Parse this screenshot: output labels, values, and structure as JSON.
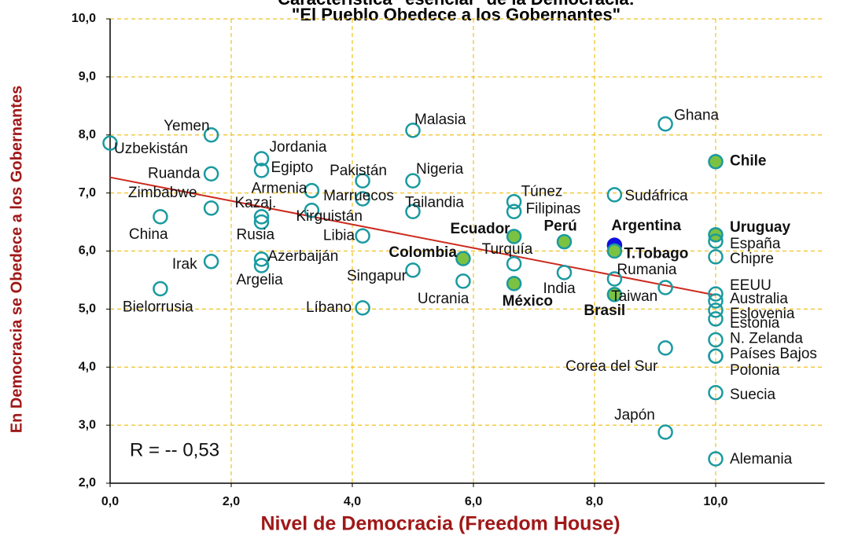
{
  "chart_data": {
    "type": "scatter",
    "title": [
      "Característica \"esencial\" de la Democracia:",
      "\"El Pueblo Obedece a los Gobernantes\""
    ],
    "xlabel": "Nivel de Democracia (Freedom House)",
    "ylabel": "En Democracia se Obedece a los Gobernantes",
    "annotation": "R = -- 0,53",
    "xlim": [
      0,
      11.8
    ],
    "ylim": [
      2,
      10
    ],
    "xticks": [
      {
        "value": 0,
        "label": "0,0"
      },
      {
        "value": 2,
        "label": "2,0"
      },
      {
        "value": 4,
        "label": "4,0"
      },
      {
        "value": 6,
        "label": "6,0"
      },
      {
        "value": 8,
        "label": "8,0"
      },
      {
        "value": 10,
        "label": "10,0"
      }
    ],
    "yticks": [
      {
        "value": 2,
        "label": "2,0"
      },
      {
        "value": 3,
        "label": "3,0"
      },
      {
        "value": 4,
        "label": "4,0"
      },
      {
        "value": 5,
        "label": "5,0"
      },
      {
        "value": 6,
        "label": "6,0"
      },
      {
        "value": 7,
        "label": "7,0"
      },
      {
        "value": 8,
        "label": "8,0"
      },
      {
        "value": 9,
        "label": "9,0"
      },
      {
        "value": 10,
        "label": "10,0"
      }
    ],
    "grid": true,
    "grid_color": "#f0c020",
    "marker_color": "#1a9aa0",
    "highlight_fill": "#7cc242",
    "labels": [
      "Uzbekistán",
      "Yemen",
      "Ruanda",
      "Zimbabwe",
      "China",
      "Irak",
      "Bielorrusia",
      "Jordania",
      "Egipto",
      "Kazaj.",
      "Rusia",
      "Azerbaiján",
      "Argelia",
      "Armenia",
      "Kirguistán",
      "Pakistán",
      "Marruecos",
      "Libia",
      "Líbano",
      "Malasia",
      "Nigeria",
      "Tailandia",
      "Singapur",
      "Ucrania",
      "Colombia",
      "Ecuador",
      "México",
      "Túnez",
      "Filipinas",
      "Turquía",
      "Perú",
      "India",
      "Argentina",
      "T.Tobago",
      "Brasil",
      "Rumania",
      "Sudáfrica",
      "Ghana",
      "Taiwan",
      "Corea del Sur",
      "Japón",
      "Chile",
      "Uruguay",
      "España",
      "Chipre",
      "EEUU",
      "Australia",
      "Eslovenia",
      "Estonia",
      "N. Zelanda",
      "Países Bajos",
      "Polonia",
      "Suecia",
      "Alemania"
    ],
    "x": [
      0,
      1.67,
      1.67,
      1.67,
      0.83,
      1.67,
      0.83,
      2.5,
      2.5,
      2.5,
      2.5,
      2.5,
      2.5,
      3.33,
      3.33,
      4.17,
      4.17,
      4.17,
      4.17,
      5,
      5,
      5,
      5,
      5.83,
      5.83,
      6.67,
      6.67,
      6.67,
      6.67,
      6.67,
      7.5,
      7.5,
      8.33,
      8.33,
      8.33,
      8.33,
      8.33,
      9.17,
      9.17,
      9.17,
      9.17,
      10,
      10,
      10,
      10,
      10,
      10,
      10,
      10,
      10,
      10,
      10,
      10,
      10
    ],
    "values": [
      7.86,
      8.0,
      7.33,
      6.74,
      6.59,
      5.82,
      5.35,
      7.59,
      7.39,
      6.59,
      6.5,
      5.86,
      5.75,
      7.04,
      6.7,
      7.21,
      6.9,
      6.26,
      5.02,
      8.08,
      7.21,
      6.68,
      5.67,
      5.48,
      5.87,
      6.25,
      5.44,
      6.85,
      6.68,
      5.78,
      6.16,
      5.63,
      6.1,
      6.0,
      5.25,
      5.52,
      6.97,
      8.19,
      5.37,
      4.33,
      2.88,
      7.54,
      6.28,
      6.17,
      5.9,
      5.26,
      5.14,
      4.98,
      4.83,
      4.47,
      4.19,
      4.19,
      3.56,
      2.42
    ],
    "highlighted": [
      "Colombia",
      "Ecuador",
      "México",
      "Perú",
      "T.Tobago",
      "Brasil",
      "Chile",
      "Uruguay"
    ],
    "emphasized": {
      "name": "Argentina",
      "color": "#1010e0"
    },
    "trendline": {
      "color": "#cc2a1e",
      "x": [
        0,
        10
      ],
      "y": [
        7.27,
        5.24
      ]
    },
    "label_color": "#a01818"
  }
}
